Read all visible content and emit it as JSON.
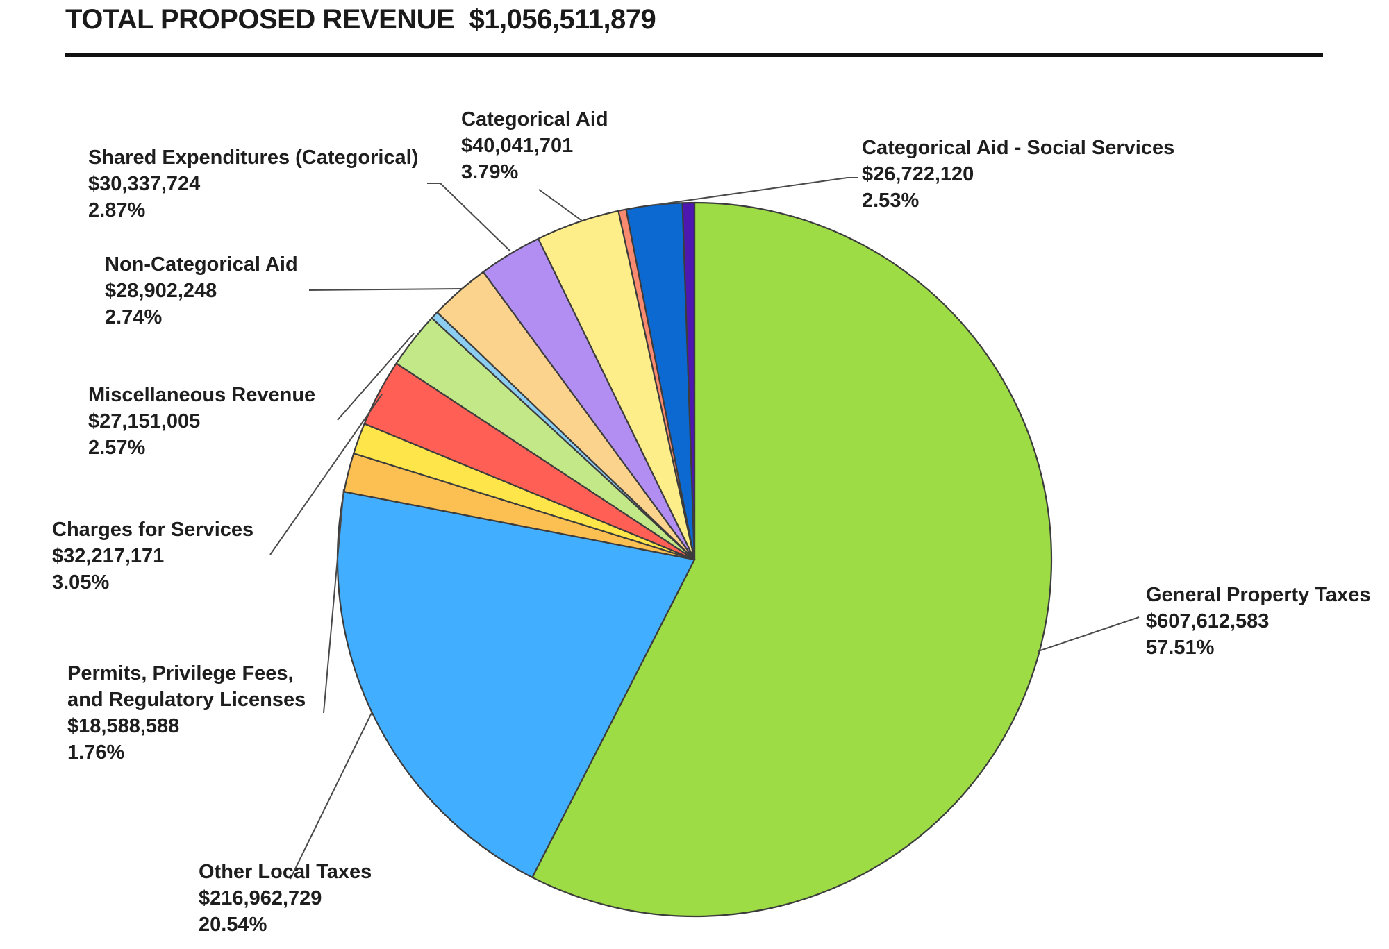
{
  "header": {
    "title": "TOTAL PROPOSED REVENUE",
    "total": "$1,056,511,879"
  },
  "chart_data": {
    "type": "pie",
    "title": "TOTAL PROPOSED REVENUE $1,056,511,879",
    "start_angle_deg": 0,
    "direction": "clockwise",
    "slices": [
      {
        "name": "General Property Taxes",
        "value": 607612583,
        "value_label": "$607,612,583",
        "pct": 57.51,
        "pct_label": "57.51%",
        "color": "#9ddc45",
        "labeled": true
      },
      {
        "name": "Other Local Taxes",
        "value": 216962729,
        "value_label": "$216,962,729",
        "pct": 20.54,
        "pct_label": "20.54%",
        "color": "#42aeff",
        "labeled": true
      },
      {
        "name": "Permits, Privilege Fees, and Regulatory Licenses",
        "label_lines": [
          "Permits, Privilege Fees,",
          "and Regulatory Licenses"
        ],
        "value": 18588588,
        "value_label": "$18,588,588",
        "pct": 1.76,
        "pct_label": "1.76%",
        "color": "#fbbf52",
        "labeled": true
      },
      {
        "name": "Unlabeled slice (yellow)",
        "value": 14900000,
        "pct": 1.41,
        "color": "#fde54a",
        "labeled": false
      },
      {
        "name": "Charges for Services",
        "value": 32217171,
        "value_label": "$32,217,171",
        "pct": 3.05,
        "pct_label": "3.05%",
        "color": "#ff5f55",
        "labeled": true
      },
      {
        "name": "Miscellaneous Revenue",
        "value": 27151005,
        "value_label": "$27,151,005",
        "pct": 2.57,
        "pct_label": "2.57%",
        "color": "#c2e888",
        "labeled": true
      },
      {
        "name": "Unlabeled slice (light blue)",
        "value": 3700000,
        "pct": 0.35,
        "color": "#8ccdf2",
        "labeled": false
      },
      {
        "name": "Non-Categorical Aid",
        "value": 28902248,
        "value_label": "$28,902,248",
        "pct": 2.74,
        "pct_label": "2.74%",
        "color": "#fcd38d",
        "labeled": true
      },
      {
        "name": "Shared Expenditures (Categorical)",
        "value": 30337724,
        "value_label": "$30,337,724",
        "pct": 2.87,
        "pct_label": "2.87%",
        "color": "#b28ef2",
        "labeled": true
      },
      {
        "name": "Categorical Aid",
        "value": 40041701,
        "value_label": "$40,041,701",
        "pct": 3.79,
        "pct_label": "3.79%",
        "color": "#fdee8a",
        "labeled": true
      },
      {
        "name": "Unlabeled slice (salmon)",
        "value": 3700000,
        "pct": 0.35,
        "color": "#f98a70",
        "labeled": false
      },
      {
        "name": "Categorical Aid - Social Services",
        "value": 26722120,
        "value_label": "$26,722,120",
        "pct": 2.53,
        "pct_label": "2.53%",
        "color": "#0b69d1",
        "labeled": true
      },
      {
        "name": "Unlabeled slice (purple)",
        "value": 5700000,
        "pct": 0.54,
        "color": "#4d17b0",
        "labeled": false
      }
    ]
  }
}
